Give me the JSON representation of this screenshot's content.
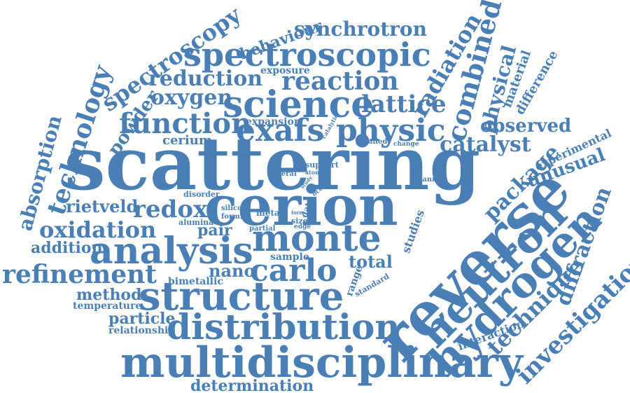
{
  "palette": {
    "word_color": "#4a7fb5",
    "background": "#ffffff"
  },
  "words": [
    "scattering",
    "cerion",
    "reverse",
    "neutron",
    "hydrogen",
    "multidisciplinary",
    "distribution",
    "structure",
    "analysis",
    "monte",
    "carlo",
    "spectroscopic",
    "science",
    "physic",
    "exafs",
    "function",
    "reduction",
    "reaction",
    "oxygen",
    "lattice",
    "combined",
    "radiation",
    "physical",
    "catalyst",
    "observed",
    "package",
    "unusual",
    "diffraction",
    "technique",
    "investigation",
    "spectroscopy",
    "technology",
    "powder",
    "absorption",
    "rietveld",
    "redox",
    "oxidation",
    "addition",
    "refinement",
    "method",
    "temperature",
    "particle",
    "relationship",
    "determination",
    "bimetallic",
    "nano",
    "pair",
    "total",
    "sample",
    "synchrotron",
    "behaviour",
    "exposure",
    "cerium",
    "expansion",
    "material",
    "difference",
    "experimental",
    "interaction",
    "studies",
    "range",
    "standard",
    "silicon",
    "formic",
    "metal",
    "alumina",
    "partial",
    "disorder",
    "several",
    "support",
    "atom",
    "occur",
    "data",
    "sized",
    "edge",
    "channel",
    "detailed",
    "change",
    "catalytic",
    "study",
    "form"
  ]
}
